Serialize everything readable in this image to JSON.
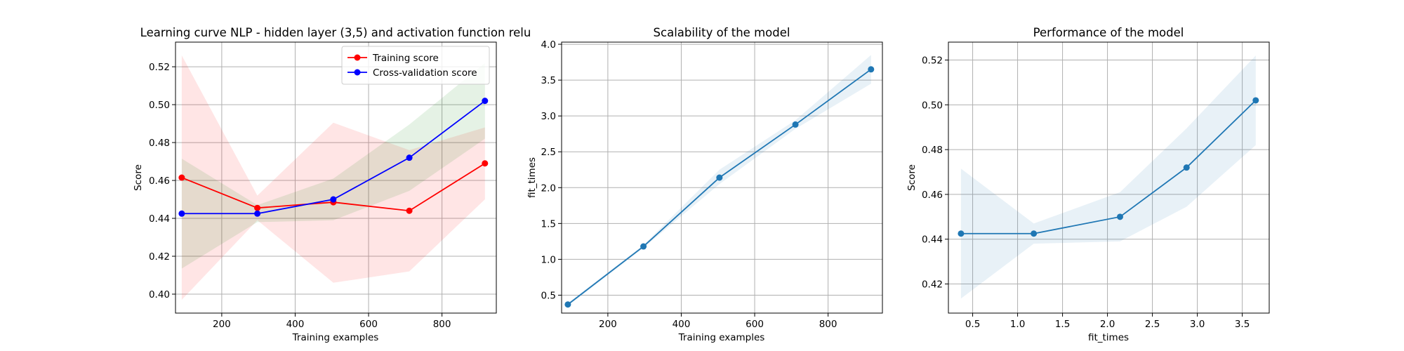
{
  "chart_data": [
    {
      "type": "line",
      "title": "Learning curve NLP - hidden layer (3,5) and activation function relu",
      "xlabel": "Training examples",
      "ylabel": "Score",
      "xlim": [
        74,
        948
      ],
      "ylim": [
        0.39,
        0.533
      ],
      "xticks": [
        200,
        400,
        600,
        800
      ],
      "yticks": [
        0.4,
        0.42,
        0.44,
        0.46,
        0.48,
        0.5,
        0.52
      ],
      "ytick_format": 2,
      "grid": true,
      "legend": "upper right",
      "x": [
        91,
        297,
        504,
        711,
        917
      ],
      "series": [
        {
          "name": "Training score",
          "color": "#ff0000",
          "band_color": "#ff0000",
          "values": [
            0.4615,
            0.4455,
            0.4485,
            0.444,
            0.469
          ],
          "lower": [
            0.397,
            0.439,
            0.406,
            0.412,
            0.45
          ],
          "upper": [
            0.526,
            0.452,
            0.4905,
            0.476,
            0.488
          ]
        },
        {
          "name": "Cross-validation score",
          "color": "#0000ff",
          "band_color": "#008000",
          "values": [
            0.4425,
            0.4425,
            0.45,
            0.472,
            0.502
          ],
          "lower": [
            0.4135,
            0.438,
            0.439,
            0.4545,
            0.482
          ],
          "upper": [
            0.4715,
            0.447,
            0.461,
            0.4895,
            0.522
          ]
        }
      ]
    },
    {
      "type": "line",
      "title": "Scalability of the model",
      "xlabel": "Training examples",
      "ylabel": "fit_times",
      "xlim": [
        74,
        948
      ],
      "ylim": [
        0.25,
        4.03
      ],
      "xticks": [
        200,
        400,
        600,
        800
      ],
      "yticks": [
        0.5,
        1.0,
        1.5,
        2.0,
        2.5,
        3.0,
        3.5,
        4.0
      ],
      "ytick_format": 1,
      "grid": true,
      "x": [
        91,
        297,
        504,
        711,
        917
      ],
      "series": [
        {
          "color": "#1f77b4",
          "band_color": "#1f77b4",
          "values": [
            0.37,
            1.18,
            2.14,
            2.88,
            3.65
          ],
          "lower": [
            0.35,
            1.16,
            2.05,
            2.82,
            3.45
          ],
          "upper": [
            0.39,
            1.2,
            2.25,
            2.94,
            3.85
          ]
        }
      ]
    },
    {
      "type": "line",
      "title": "Performance of the model",
      "xlabel": "fit_times",
      "ylabel": "Score",
      "xlim": [
        0.23,
        3.8
      ],
      "ylim": [
        0.407,
        0.528
      ],
      "xticks": [
        0.5,
        1.0,
        1.5,
        2.0,
        2.5,
        3.0,
        3.5
      ],
      "xtick_format": 1,
      "yticks": [
        0.42,
        0.44,
        0.46,
        0.48,
        0.5,
        0.52
      ],
      "ytick_format": 2,
      "grid": true,
      "x": [
        0.37,
        1.18,
        2.14,
        2.88,
        3.65
      ],
      "series": [
        {
          "color": "#1f77b4",
          "band_color": "#1f77b4",
          "values": [
            0.4425,
            0.4425,
            0.45,
            0.472,
            0.502
          ],
          "lower": [
            0.4135,
            0.438,
            0.439,
            0.4545,
            0.482
          ],
          "upper": [
            0.4715,
            0.447,
            0.461,
            0.4895,
            0.522
          ]
        }
      ]
    }
  ]
}
